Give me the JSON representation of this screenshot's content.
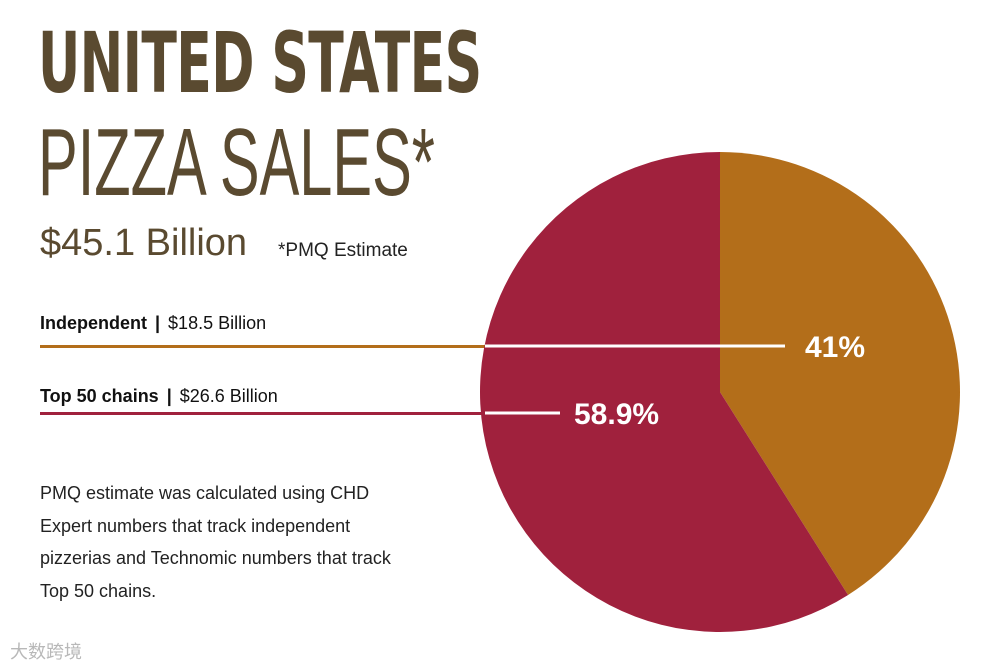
{
  "title_line1": "UNITED STATES",
  "title_line2": "PIZZA SALES*",
  "total": "$45.1 Billion",
  "note": "*PMQ Estimate",
  "description": "PMQ estimate was calculated using CHD Expert numbers that track independent pizzerias and Technomic numbers that track Top 50 chains.",
  "watermark": "大数跨境",
  "colors": {
    "title": "#5a4a30",
    "independent": "#b36e1a",
    "chains": "#a0213d"
  },
  "chart_data": {
    "type": "pie",
    "slices": [
      {
        "name": "Independent",
        "amount": "$18.5 Billion",
        "value": 41,
        "label": "41%",
        "color": "#b36e1a"
      },
      {
        "name": "Top 50 chains",
        "amount": "$26.6 Billion",
        "value": 58.9,
        "label": "58.9%",
        "color": "#a0213d"
      }
    ]
  }
}
